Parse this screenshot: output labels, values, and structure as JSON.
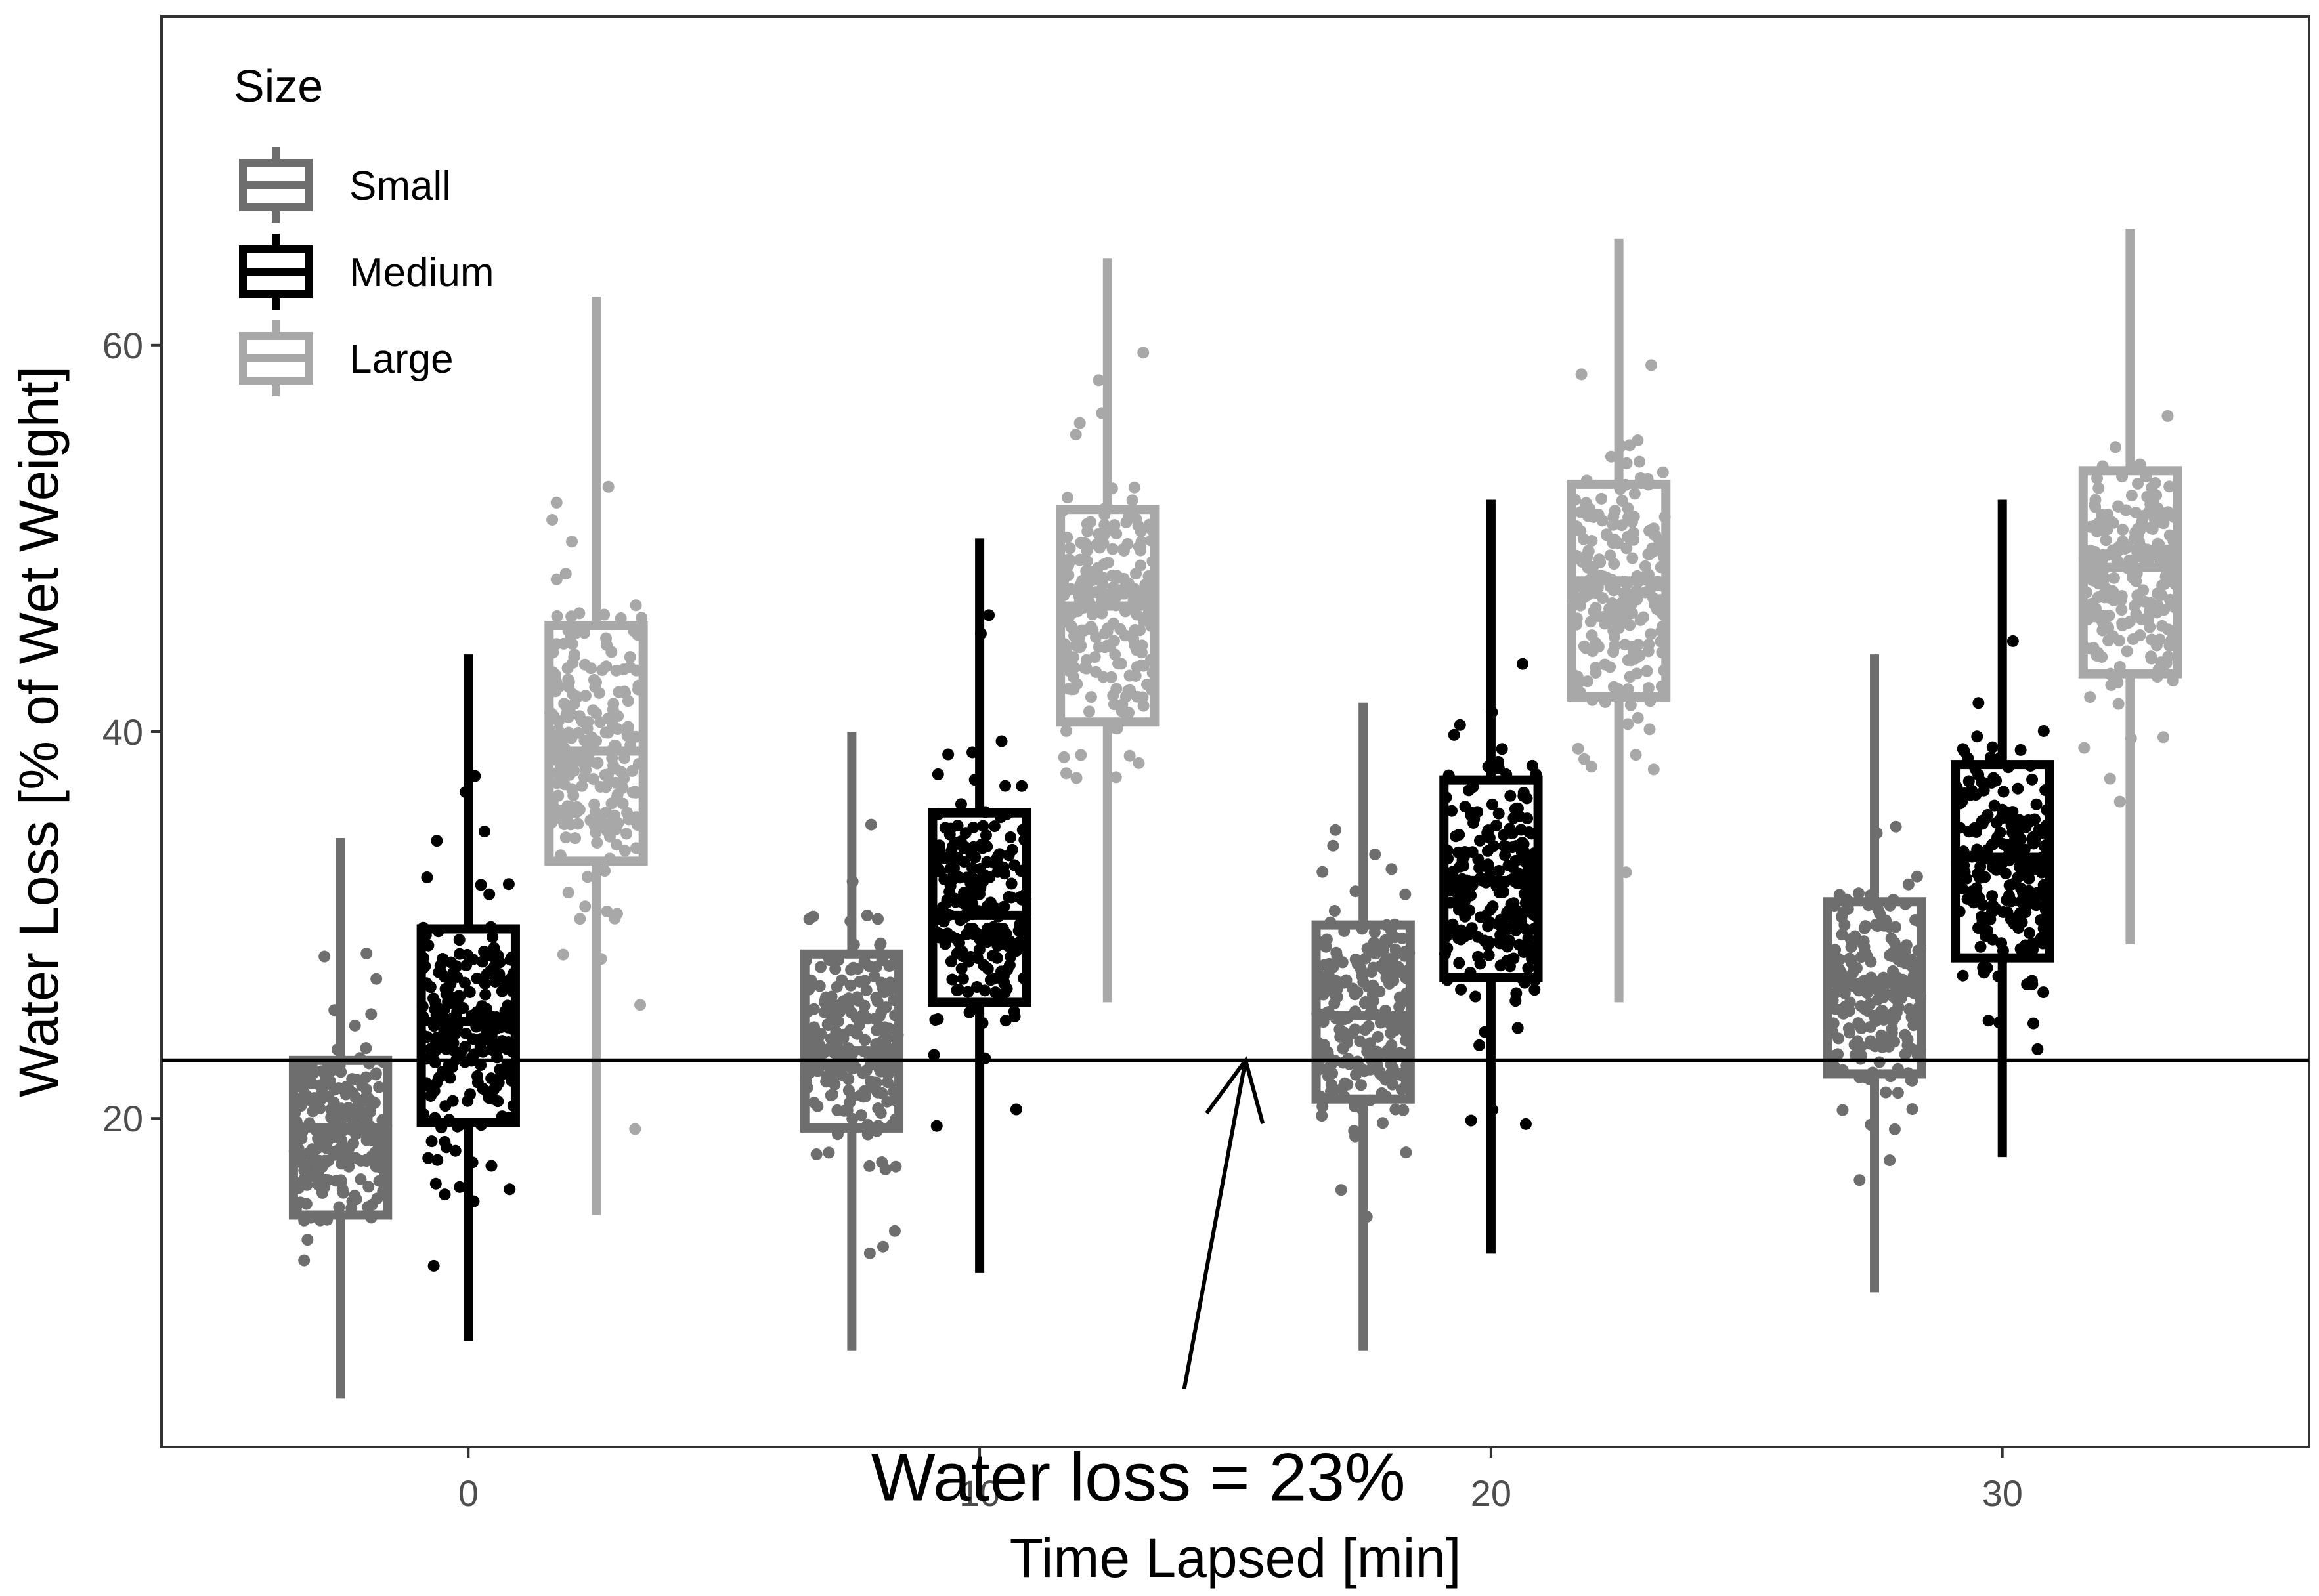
{
  "chart_data": {
    "type": "box",
    "xlabel": "Time Lapsed [min]",
    "ylabel": "Water Loss [% of Wet Weight]",
    "x_ticks": [
      0,
      10,
      20,
      30
    ],
    "x_tick_labels": [
      "0",
      "10",
      "20",
      "30"
    ],
    "y_ticks": [
      20,
      40,
      60
    ],
    "y_tick_labels": [
      "20",
      "40",
      "60"
    ],
    "xlim": [
      -6,
      36
    ],
    "ylim": [
      3,
      77
    ],
    "grid": false,
    "legend": {
      "title": "Size",
      "position": "top-left",
      "entries": [
        "Small",
        "Medium",
        "Large"
      ]
    },
    "reference_line": {
      "y": 23
    },
    "annotation": {
      "text": "Water loss = 23%",
      "arrow_from": [
        14,
        6
      ],
      "arrow_to": [
        15.2,
        23
      ]
    },
    "groups": [
      {
        "name": "Small",
        "color": "#6e6e6e",
        "boxes": [
          {
            "x": -2.5,
            "whisker_low": 5.5,
            "q1": 15,
            "median": 19.5,
            "q3": 23,
            "whisker_high": 34.5,
            "outliers": []
          },
          {
            "x": 7.5,
            "whisker_low": 8,
            "q1": 19.5,
            "median": 23.5,
            "q3": 28.5,
            "whisker_high": 40,
            "outliers": []
          },
          {
            "x": 17.5,
            "whisker_low": 8,
            "q1": 21,
            "median": 25.3,
            "q3": 30,
            "whisker_high": 41.5,
            "outliers": []
          },
          {
            "x": 27.5,
            "whisker_low": 11,
            "q1": 22.3,
            "median": 27,
            "q3": 31.2,
            "whisker_high": 44,
            "outliers": []
          }
        ]
      },
      {
        "name": "Medium",
        "color": "#000000",
        "boxes": [
          {
            "x": 0,
            "whisker_low": 8.5,
            "q1": 19.8,
            "median": 25,
            "q3": 29.8,
            "whisker_high": 44,
            "outliers": []
          },
          {
            "x": 10,
            "whisker_low": 12,
            "q1": 26,
            "median": 30.5,
            "q3": 35.8,
            "whisker_high": 50,
            "outliers": []
          },
          {
            "x": 20,
            "whisker_low": 13,
            "q1": 27.3,
            "median": 32.3,
            "q3": 37.5,
            "whisker_high": 52,
            "outliers": []
          },
          {
            "x": 30,
            "whisker_low": 18,
            "q1": 28.3,
            "median": 33.5,
            "q3": 38.3,
            "whisker_high": 52,
            "outliers": []
          }
        ]
      },
      {
        "name": "Large",
        "color": "#a8a8a8",
        "boxes": [
          {
            "x": 2.5,
            "whisker_low": 15,
            "q1": 33.3,
            "median": 39,
            "q3": 45.5,
            "whisker_high": 62.5,
            "outliers": []
          },
          {
            "x": 12.5,
            "whisker_low": 26,
            "q1": 40.5,
            "median": 46.5,
            "q3": 51.5,
            "whisker_high": 64.5,
            "outliers": []
          },
          {
            "x": 22.5,
            "whisker_low": 26,
            "q1": 41.8,
            "median": 47.8,
            "q3": 52.8,
            "whisker_high": 65.5,
            "outliers": []
          },
          {
            "x": 32.5,
            "whisker_low": 29,
            "q1": 43,
            "median": 48.5,
            "q3": 53.5,
            "whisker_high": 66,
            "outliers": []
          }
        ]
      }
    ]
  }
}
